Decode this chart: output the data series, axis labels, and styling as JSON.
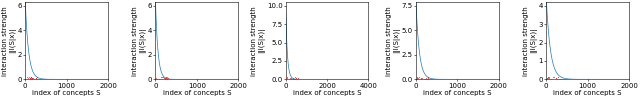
{
  "n_subplots": 5,
  "subplots": [
    {
      "x_max": 2000,
      "y_max": 6,
      "y_ticks": [
        0,
        2,
        4,
        6
      ],
      "x_ticks": [
        0,
        1000,
        2000
      ],
      "decay_scale": 80,
      "peak": 6.5,
      "red_dot_count": 20,
      "red_x_max": 300
    },
    {
      "x_max": 2000,
      "y_max": 6,
      "y_ticks": [
        0,
        2,
        4,
        6
      ],
      "x_ticks": [
        0,
        1000,
        2000
      ],
      "decay_scale": 60,
      "peak": 6.5,
      "red_dot_count": 20,
      "red_x_max": 300
    },
    {
      "x_max": 4000,
      "y_max": 10.0,
      "y_ticks": [
        0.0,
        2.5,
        5.0,
        7.5,
        10.0
      ],
      "x_ticks": [
        0,
        2000,
        4000
      ],
      "decay_scale": 80,
      "peak": 9.8,
      "red_dot_count": 20,
      "red_x_max": 600
    },
    {
      "x_max": 2000,
      "y_max": 7.5,
      "y_ticks": [
        0.0,
        2.5,
        5.0,
        7.5
      ],
      "x_ticks": [
        0,
        1000,
        2000
      ],
      "decay_scale": 80,
      "peak": 8.0,
      "red_dot_count": 20,
      "red_x_max": 300
    },
    {
      "x_max": 2000,
      "y_max": 4,
      "y_ticks": [
        0,
        1,
        2,
        3,
        4
      ],
      "x_ticks": [
        0,
        1000,
        2000
      ],
      "decay_scale": 100,
      "peak": 4.5,
      "red_dot_count": 20,
      "red_x_max": 400
    }
  ],
  "line_color": "#1f77b4",
  "red_color": "#d62728",
  "ylabel_line1": "interaction strength",
  "ylabel_line2": "||I(S|x)|",
  "xlabel": "index of concepts S",
  "bg_color": "white",
  "figure_bg": "white",
  "tick_fontsize": 5,
  "label_fontsize": 5
}
